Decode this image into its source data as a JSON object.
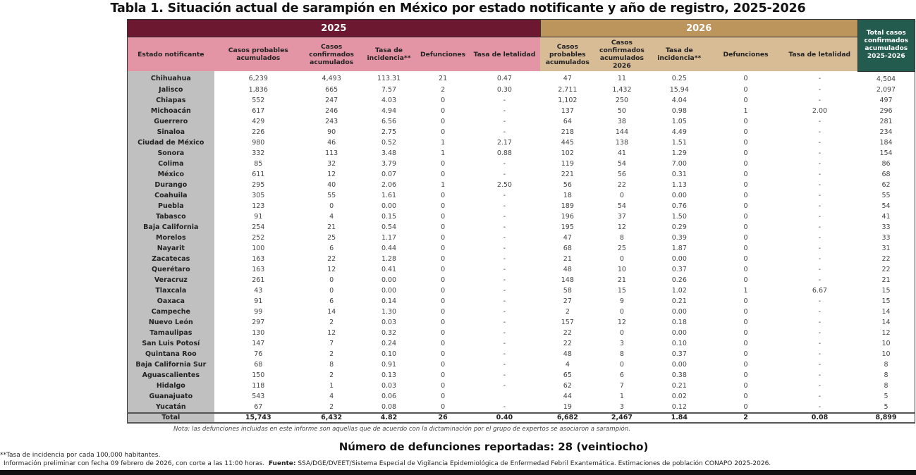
{
  "title": "Tabla 1. Situación actual de sarampión en México por estado notificante y año de registro, 2025-2026",
  "colors": {
    "header_2025": "#6b1830",
    "subheader_2025": "#e495a5",
    "header_2026": "#bc955c",
    "subheader_2026": "#d8bc96",
    "total_header": "#235b4e",
    "state_col": "#c0c0c0"
  },
  "header": {
    "year_2025": "2025",
    "year_2026": "2026",
    "total_col": "Total casos confirmados acumulados 2025-2026",
    "state_col": "Estado notificante",
    "cols_2025": [
      "Casos probables acumulados",
      "Casos confirmados acumulados",
      "Tasa de incidencia**",
      "Defunciones",
      "Tasa de letalidad"
    ],
    "cols_2026": [
      "Casos probables acumulados",
      "Casos confirmados acumulados 2026",
      "Tasa de incidencia**",
      "Defunciones",
      "Tasa de letalidad"
    ]
  },
  "rows": [
    [
      "Chihuahua",
      "6,239",
      "4,493",
      "113.31",
      "21",
      "0.47",
      "47",
      "11",
      "0.25",
      "0",
      "-",
      "4,504"
    ],
    [
      "Jalisco",
      "1,836",
      "665",
      "7.57",
      "2",
      "0.30",
      "2,711",
      "1,432",
      "15.94",
      "0",
      "-",
      "2,097"
    ],
    [
      "Chiapas",
      "552",
      "247",
      "4.03",
      "0",
      "-",
      "1,102",
      "250",
      "4.04",
      "0",
      "-",
      "497"
    ],
    [
      "Michoacán",
      "617",
      "246",
      "4.94",
      "0",
      "-",
      "137",
      "50",
      "0.98",
      "1",
      "2.00",
      "296"
    ],
    [
      "Guerrero",
      "429",
      "243",
      "6.56",
      "0",
      "-",
      "64",
      "38",
      "1.05",
      "0",
      "-",
      "281"
    ],
    [
      "Sinaloa",
      "226",
      "90",
      "2.75",
      "0",
      "-",
      "218",
      "144",
      "4.49",
      "0",
      "-",
      "234"
    ],
    [
      "Ciudad de México",
      "980",
      "46",
      "0.52",
      "1",
      "2.17",
      "445",
      "138",
      "1.51",
      "0",
      "-",
      "184"
    ],
    [
      "Sonora",
      "332",
      "113",
      "3.48",
      "1",
      "0.88",
      "102",
      "41",
      "1.29",
      "0",
      "-",
      "154"
    ],
    [
      "Colima",
      "85",
      "32",
      "3.79",
      "0",
      "-",
      "119",
      "54",
      "7.00",
      "0",
      "-",
      "86"
    ],
    [
      "México",
      "611",
      "12",
      "0.07",
      "0",
      "-",
      "221",
      "56",
      "0.31",
      "0",
      "-",
      "68"
    ],
    [
      "Durango",
      "295",
      "40",
      "2.06",
      "1",
      "2.50",
      "56",
      "22",
      "1.13",
      "0",
      "-",
      "62"
    ],
    [
      "Coahuila",
      "305",
      "55",
      "1.61",
      "0",
      "-",
      "18",
      "0",
      "0.00",
      "0",
      "-",
      "55"
    ],
    [
      "Puebla",
      "123",
      "0",
      "0.00",
      "0",
      "-",
      "189",
      "54",
      "0.76",
      "0",
      "-",
      "54"
    ],
    [
      "Tabasco",
      "91",
      "4",
      "0.15",
      "0",
      "-",
      "196",
      "37",
      "1.50",
      "0",
      "-",
      "41"
    ],
    [
      "Baja California",
      "254",
      "21",
      "0.54",
      "0",
      "-",
      "195",
      "12",
      "0.29",
      "0",
      "-",
      "33"
    ],
    [
      "Morelos",
      "252",
      "25",
      "1.17",
      "0",
      "-",
      "47",
      "8",
      "0.39",
      "0",
      "-",
      "33"
    ],
    [
      "Nayarit",
      "100",
      "6",
      "0.44",
      "0",
      "-",
      "68",
      "25",
      "1.87",
      "0",
      "-",
      "31"
    ],
    [
      "Zacatecas",
      "163",
      "22",
      "1.28",
      "0",
      "-",
      "21",
      "0",
      "0.00",
      "0",
      "-",
      "22"
    ],
    [
      "Querétaro",
      "163",
      "12",
      "0.41",
      "0",
      "-",
      "48",
      "10",
      "0.37",
      "0",
      "-",
      "22"
    ],
    [
      "Veracruz",
      "261",
      "0",
      "0.00",
      "0",
      "-",
      "148",
      "21",
      "0.26",
      "0",
      "-",
      "21"
    ],
    [
      "Tlaxcala",
      "43",
      "0",
      "0.00",
      "0",
      "-",
      "58",
      "15",
      "1.02",
      "1",
      "6.67",
      "15"
    ],
    [
      "Oaxaca",
      "91",
      "6",
      "0.14",
      "0",
      "-",
      "27",
      "9",
      "0.21",
      "0",
      "-",
      "15"
    ],
    [
      "Campeche",
      "99",
      "14",
      "1.30",
      "0",
      "-",
      "2",
      "0",
      "0.00",
      "0",
      "-",
      "14"
    ],
    [
      "Nuevo León",
      "297",
      "2",
      "0.03",
      "0",
      "-",
      "157",
      "12",
      "0.18",
      "0",
      "-",
      "14"
    ],
    [
      "Tamaulipas",
      "130",
      "12",
      "0.32",
      "0",
      "-",
      "22",
      "0",
      "0.00",
      "0",
      "-",
      "12"
    ],
    [
      "San Luis Potosí",
      "147",
      "7",
      "0.24",
      "0",
      "-",
      "22",
      "3",
      "0.10",
      "0",
      "-",
      "10"
    ],
    [
      "Quintana Roo",
      "76",
      "2",
      "0.10",
      "0",
      "-",
      "48",
      "8",
      "0.37",
      "0",
      "-",
      "10"
    ],
    [
      "Baja California Sur",
      "68",
      "8",
      "0.91",
      "0",
      "-",
      "4",
      "0",
      "0.00",
      "0",
      "-",
      "8"
    ],
    [
      "Aguascalientes",
      "150",
      "2",
      "0.13",
      "0",
      "-",
      "65",
      "6",
      "0.38",
      "0",
      "-",
      "8"
    ],
    [
      "Hidalgo",
      "118",
      "1",
      "0.03",
      "0",
      "-",
      "62",
      "7",
      "0.21",
      "0",
      "-",
      "8"
    ],
    [
      "Guanajuato",
      "543",
      "4",
      "0.06",
      "0",
      "",
      "44",
      "1",
      "0.02",
      "0",
      "-",
      "5"
    ],
    [
      "Yucatán",
      "67",
      "2",
      "0.08",
      "0",
      "-",
      "19",
      "3",
      "0.12",
      "0",
      "-",
      "5"
    ]
  ],
  "total": [
    "Total",
    "15,743",
    "6,432",
    "4.82",
    "26",
    "0.40",
    "6,682",
    "2,467",
    "1.84",
    "2",
    "0.08",
    "8,899"
  ],
  "nota": "Nota: las defunciones incluidas en este informe son aquellas que de acuerdo con la dictaminación por el grupo de expertos se asociaron a sarampión.",
  "defunciones_reportadas": "Número de defunciones reportadas: 28 (veintiocho)",
  "footnote_tasa": "**Tasa de incidencia por cada 100,000 habitantes.",
  "footnote_info": "Información preliminar con fecha 09 febrero de 2026, con corte a las 11:00 horas.",
  "footnote_fuente_label": "Fuente:",
  "footnote_fuente": "SSA/DGE/DVEET/Sistema Especial de Vigilancia Epidemiológica de Enfermedad Febril Exantemática. Estimaciones de población CONAPO 2025-2026."
}
